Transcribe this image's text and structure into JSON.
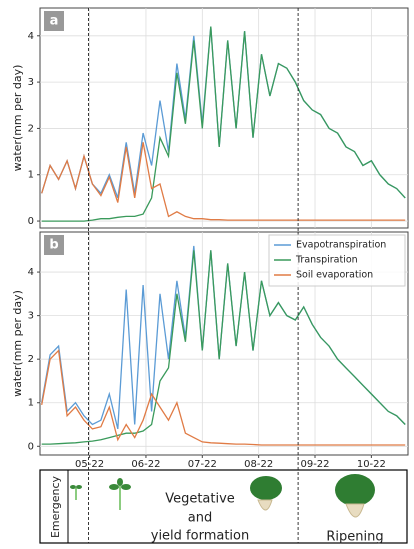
{
  "chart_data": [
    {
      "type": "line",
      "panel_label": "a",
      "ylabel": "water(mm per day)",
      "x": [
        4.15,
        4.3,
        4.45,
        4.6,
        4.75,
        4.9,
        5.05,
        5.2,
        5.35,
        5.5,
        5.65,
        5.8,
        5.95,
        6.1,
        6.25,
        6.4,
        6.55,
        6.7,
        6.85,
        7.0,
        7.15,
        7.3,
        7.45,
        7.6,
        7.75,
        7.9,
        8.05,
        8.2,
        8.35,
        8.5,
        8.65,
        8.8,
        8.95,
        9.1,
        9.25,
        9.4,
        9.55,
        9.7,
        9.85,
        10.0,
        10.15,
        10.3,
        10.45,
        10.6
      ],
      "series": [
        {
          "name": "Evapotranspiration",
          "color": "#5b9bd5",
          "values": [
            0.6,
            1.2,
            0.9,
            1.3,
            0.7,
            1.4,
            0.8,
            0.6,
            1.0,
            0.5,
            1.7,
            0.6,
            1.9,
            1.2,
            2.6,
            1.5,
            3.4,
            2.2,
            4.0,
            2.1,
            4.2,
            1.6,
            3.9,
            2.0,
            4.1,
            1.8,
            3.6,
            2.7,
            3.4,
            3.3,
            3.0,
            2.6,
            2.4,
            2.3,
            2.0,
            1.9,
            1.6,
            1.5,
            1.2,
            1.3,
            1.0,
            0.8,
            0.7,
            0.5
          ]
        },
        {
          "name": "Transpiration",
          "color": "#3a9a5b",
          "values": [
            0,
            0,
            0,
            0,
            0,
            0,
            0.02,
            0.05,
            0.05,
            0.08,
            0.1,
            0.1,
            0.15,
            0.5,
            1.8,
            1.4,
            3.2,
            2.1,
            3.9,
            2.0,
            4.2,
            1.6,
            3.9,
            2.0,
            4.1,
            1.8,
            3.6,
            2.7,
            3.4,
            3.3,
            3.0,
            2.6,
            2.4,
            2.3,
            2.0,
            1.9,
            1.6,
            1.5,
            1.2,
            1.3,
            1.0,
            0.8,
            0.7,
            0.5
          ]
        },
        {
          "name": "Soil evaporation",
          "color": "#e07b45",
          "values": [
            0.6,
            1.2,
            0.9,
            1.3,
            0.7,
            1.4,
            0.8,
            0.55,
            0.95,
            0.4,
            1.6,
            0.5,
            1.7,
            0.7,
            0.8,
            0.1,
            0.2,
            0.1,
            0.05,
            0.05,
            0.03,
            0.03,
            0.02,
            0.02,
            0.02,
            0.02,
            0.02,
            0.02,
            0.02,
            0.02,
            0.02,
            0.02,
            0.02,
            0.02,
            0.02,
            0.02,
            0.02,
            0.02,
            0.02,
            0.02,
            0.02,
            0.02,
            0.02,
            0.02
          ]
        }
      ],
      "xlim": [
        4.12,
        10.65
      ],
      "ylim": [
        -0.15,
        4.6
      ],
      "yticks": [
        0,
        1,
        2,
        3,
        4
      ],
      "grid": true,
      "vlines": [
        4.98,
        8.7
      ]
    },
    {
      "type": "line",
      "panel_label": "b",
      "ylabel": "water(mm per day)",
      "x": [
        4.15,
        4.3,
        4.45,
        4.6,
        4.75,
        4.9,
        5.05,
        5.2,
        5.35,
        5.5,
        5.65,
        5.8,
        5.95,
        6.1,
        6.25,
        6.4,
        6.55,
        6.7,
        6.85,
        7.0,
        7.15,
        7.3,
        7.45,
        7.6,
        7.75,
        7.9,
        8.05,
        8.2,
        8.35,
        8.5,
        8.65,
        8.8,
        8.95,
        9.1,
        9.25,
        9.4,
        9.55,
        9.7,
        9.85,
        10.0,
        10.15,
        10.3,
        10.45,
        10.6
      ],
      "series": [
        {
          "name": "Evapotranspiration",
          "color": "#5b9bd5",
          "values": [
            1.0,
            2.1,
            2.3,
            0.8,
            1.0,
            0.7,
            0.5,
            0.6,
            1.2,
            0.4,
            3.6,
            0.5,
            3.7,
            0.8,
            3.5,
            2.0,
            3.8,
            2.5,
            4.6,
            2.2,
            4.5,
            2.0,
            4.2,
            2.3,
            4.0,
            2.2,
            3.8,
            3.0,
            3.3,
            3.0,
            2.9,
            3.2,
            2.8,
            2.5,
            2.3,
            2.0,
            1.8,
            1.6,
            1.4,
            1.2,
            1.0,
            0.8,
            0.7,
            0.5
          ]
        },
        {
          "name": "Transpiration",
          "color": "#3a9a5b",
          "values": [
            0.05,
            0.05,
            0.06,
            0.07,
            0.08,
            0.1,
            0.12,
            0.15,
            0.2,
            0.25,
            0.3,
            0.3,
            0.35,
            0.5,
            1.5,
            1.8,
            3.5,
            2.4,
            4.5,
            2.2,
            4.5,
            2.0,
            4.2,
            2.3,
            4.0,
            2.2,
            3.8,
            3.0,
            3.3,
            3.0,
            2.9,
            3.2,
            2.8,
            2.5,
            2.3,
            2.0,
            1.8,
            1.6,
            1.4,
            1.2,
            1.0,
            0.8,
            0.7,
            0.5
          ]
        },
        {
          "name": "Soil evaporation",
          "color": "#e07b45",
          "values": [
            0.95,
            2.0,
            2.2,
            0.7,
            0.9,
            0.6,
            0.4,
            0.45,
            0.9,
            0.15,
            0.5,
            0.2,
            0.6,
            1.2,
            0.9,
            0.6,
            1.0,
            0.3,
            0.2,
            0.1,
            0.08,
            0.07,
            0.06,
            0.05,
            0.05,
            0.04,
            0.03,
            0.03,
            0.03,
            0.03,
            0.03,
            0.03,
            0.03,
            0.03,
            0.03,
            0.03,
            0.03,
            0.03,
            0.03,
            0.03,
            0.03,
            0.03,
            0.03,
            0.03
          ]
        }
      ],
      "xlim": [
        4.12,
        10.65
      ],
      "ylim": [
        -0.2,
        4.92
      ],
      "yticks": [
        0,
        1,
        2,
        3,
        4
      ],
      "xticks": [
        {
          "value": 5,
          "label": "05-22"
        },
        {
          "value": 6,
          "label": "06-22"
        },
        {
          "value": 7,
          "label": "07-22"
        },
        {
          "value": 8,
          "label": "08-22"
        },
        {
          "value": 9,
          "label": "09-22"
        },
        {
          "value": 10,
          "label": "10-22"
        }
      ],
      "grid": true,
      "legend": "upper right",
      "vlines": [
        4.98,
        8.7
      ]
    }
  ],
  "phases": {
    "emergency": "Emergency",
    "vegetative": [
      "Vegetative",
      "and",
      "yield formation"
    ],
    "ripening": "Ripening"
  }
}
